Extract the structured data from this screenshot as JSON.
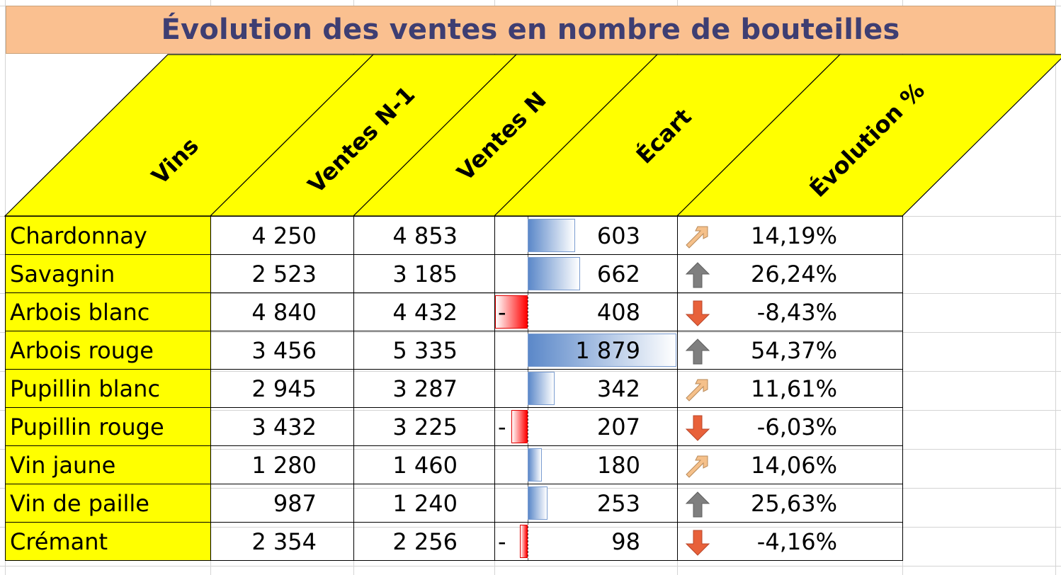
{
  "title": "Évolution des ventes en nombre de bouteilles",
  "headers": {
    "vins": "Vins",
    "ventes_n1": "Ventes N-1",
    "ventes_n": "Ventes N",
    "ecart": "Écart",
    "evolution": "Évolution %"
  },
  "rows": [
    {
      "vin": "Chardonnay",
      "n1": "4 250",
      "n": "4 853",
      "ecart": "603",
      "ecart_value": 603,
      "neg_sign": "",
      "evolution": "14,19%",
      "trend_icon": "arrow-up-right-icon"
    },
    {
      "vin": "Savagnin",
      "n1": "2 523",
      "n": "3 185",
      "ecart": "662",
      "ecart_value": 662,
      "neg_sign": "",
      "evolution": "26,24%",
      "trend_icon": "arrow-up-icon"
    },
    {
      "vin": "Arbois blanc",
      "n1": "4 840",
      "n": "4 432",
      "ecart": "408",
      "ecart_value": -408,
      "neg_sign": "-",
      "evolution": "-8,43%",
      "trend_icon": "arrow-down-icon"
    },
    {
      "vin": "Arbois rouge",
      "n1": "3 456",
      "n": "5 335",
      "ecart": "1 879",
      "ecart_value": 1879,
      "neg_sign": "",
      "evolution": "54,37%",
      "trend_icon": "arrow-up-icon"
    },
    {
      "vin": "Pupillin blanc",
      "n1": "2 945",
      "n": "3 287",
      "ecart": "342",
      "ecart_value": 342,
      "neg_sign": "",
      "evolution": "11,61%",
      "trend_icon": "arrow-up-right-icon"
    },
    {
      "vin": "Pupillin rouge",
      "n1": "3 432",
      "n": "3 225",
      "ecart": "207",
      "ecart_value": -207,
      "neg_sign": "-",
      "evolution": "-6,03%",
      "trend_icon": "arrow-down-icon"
    },
    {
      "vin": "Vin jaune",
      "n1": "1 280",
      "n": "1 460",
      "ecart": "180",
      "ecart_value": 180,
      "neg_sign": "",
      "evolution": "14,06%",
      "trend_icon": "arrow-up-right-icon"
    },
    {
      "vin": "Vin de paille",
      "n1": "987",
      "n": "1 240",
      "ecart": "253",
      "ecart_value": 253,
      "neg_sign": "",
      "evolution": "25,63%",
      "trend_icon": "arrow-up-icon"
    },
    {
      "vin": "Crémant",
      "n1": "2 354",
      "n": "2 256",
      "ecart": "98",
      "ecart_value": -98,
      "neg_sign": "-",
      "evolution": "-4,16%",
      "trend_icon": "arrow-down-icon"
    }
  ],
  "colors": {
    "title_bg": "#fac090",
    "title_text": "#3e3e72",
    "header_bg": "#ffff00",
    "name_bg": "#ffff00",
    "bar_positive": "#5b88c9",
    "bar_negative": "#ff0000",
    "arrow_up_right": "#f5c08a",
    "arrow_up": "#7f7f7f",
    "arrow_down": "#e8613a"
  }
}
